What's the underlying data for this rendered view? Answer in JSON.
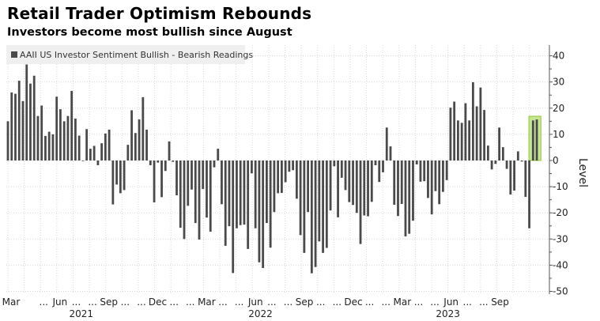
{
  "chart_data": {
    "type": "bar",
    "title": "Retail Trader Optimism Rebounds",
    "subtitle": "Investors become most bullish since August",
    "legend": [
      {
        "label": "AAII US Investor Sentiment Bullish - Bearish Readings",
        "color": "#4a4a4a"
      }
    ],
    "legend_placement": "top-left",
    "ylabel": "Level",
    "ylim": [
      -50,
      40
    ],
    "yticks": [
      40,
      30,
      20,
      10,
      0,
      -10,
      -20,
      -30,
      -40,
      -50
    ],
    "grid": true,
    "frequency": "weekly",
    "xticks": [
      {
        "month_index": 0,
        "label": "Mar"
      },
      {
        "month_index": 2,
        "label": "..."
      },
      {
        "month_index": 3,
        "label": "Jun"
      },
      {
        "month_index": 4,
        "label": "..."
      },
      {
        "month_index": 5,
        "label": "..."
      },
      {
        "month_index": 6,
        "label": "Sep"
      },
      {
        "month_index": 7,
        "label": "..."
      },
      {
        "month_index": 8,
        "label": "..."
      },
      {
        "month_index": 9,
        "label": "Dec"
      },
      {
        "month_index": 10,
        "label": "..."
      },
      {
        "month_index": 11,
        "label": "..."
      },
      {
        "month_index": 12,
        "label": "Mar"
      },
      {
        "month_index": 13,
        "label": "..."
      },
      {
        "month_index": 14,
        "label": "..."
      },
      {
        "month_index": 15,
        "label": "Jun"
      },
      {
        "month_index": 16,
        "label": "..."
      },
      {
        "month_index": 17,
        "label": "..."
      },
      {
        "month_index": 18,
        "label": "Sep"
      },
      {
        "month_index": 19,
        "label": "..."
      },
      {
        "month_index": 20,
        "label": "..."
      },
      {
        "month_index": 21,
        "label": "Dec"
      },
      {
        "month_index": 22,
        "label": "..."
      },
      {
        "month_index": 23,
        "label": "..."
      },
      {
        "month_index": 24,
        "label": "Mar"
      },
      {
        "month_index": 25,
        "label": "..."
      },
      {
        "month_index": 26,
        "label": "..."
      },
      {
        "month_index": 27,
        "label": "Jun"
      },
      {
        "month_index": 28,
        "label": "..."
      },
      {
        "month_index": 29,
        "label": "..."
      },
      {
        "month_index": 30,
        "label": "Sep"
      }
    ],
    "years": [
      {
        "month_index": 4.5,
        "label": "2021"
      },
      {
        "month_index": 15.5,
        "label": "2022"
      },
      {
        "month_index": 27,
        "label": "2023"
      }
    ],
    "values": [
      15,
      26,
      25.5,
      30.5,
      22.7,
      36.7,
      29.4,
      32.4,
      17,
      21,
      9.4,
      11,
      10,
      24.4,
      19.6,
      15,
      17,
      26.6,
      16,
      9.5,
      -0.2,
      12,
      4.5,
      5.6,
      -1.8,
      6.6,
      10.3,
      11.8,
      -16.8,
      -9.2,
      -12.5,
      -11.3,
      6,
      19.2,
      10.5,
      15.7,
      24.2,
      11.8,
      -1.8,
      -16,
      -0.8,
      -14,
      -4,
      7.3,
      -0.5,
      -13.3,
      -25.7,
      -30,
      -17.3,
      -11.1,
      -23.9,
      -30.2,
      -10.9,
      -21.8,
      -27.2,
      -2.6,
      4.5,
      -16.7,
      -32.6,
      -25.1,
      -43,
      -25.9,
      -24.7,
      -24.5,
      -33.8,
      -4.9,
      -25.9,
      -38.9,
      -41.1,
      -23.9,
      -33.3,
      -19.7,
      -12.5,
      -12.4,
      -8.3,
      -4.3,
      -3.7,
      -14.6,
      -28.5,
      -35.3,
      -19.7,
      -43.1,
      -40.7,
      -30.9,
      -35.3,
      -33.4,
      -19.1,
      -2.2,
      -21.7,
      -6.6,
      -11.3,
      -15.9,
      -17,
      -20,
      -31.9,
      -21,
      -21.3,
      -15.8,
      -1.8,
      -8.2,
      -4.5,
      12.6,
      5.4,
      -16.9,
      -21.2,
      -16.6,
      -29,
      -28,
      -23,
      -1.5,
      -8.1,
      -7.9,
      -14.3,
      -20.6,
      -11.7,
      -16.7,
      -12,
      -7.5,
      20.2,
      22.5,
      15.3,
      14.4,
      21.9,
      15.3,
      29.9,
      20.7,
      27.9,
      19.3,
      5.7,
      -3.4,
      -1.3,
      12.6,
      5.1,
      -3.2,
      -13,
      -11.5,
      3.5,
      -0.4,
      -13.9,
      -25.9,
      15.3,
      15.7
    ],
    "highlight_last_n": 2,
    "bar_color": "#4a4a4a",
    "highlight_color": "#b9e07a"
  }
}
